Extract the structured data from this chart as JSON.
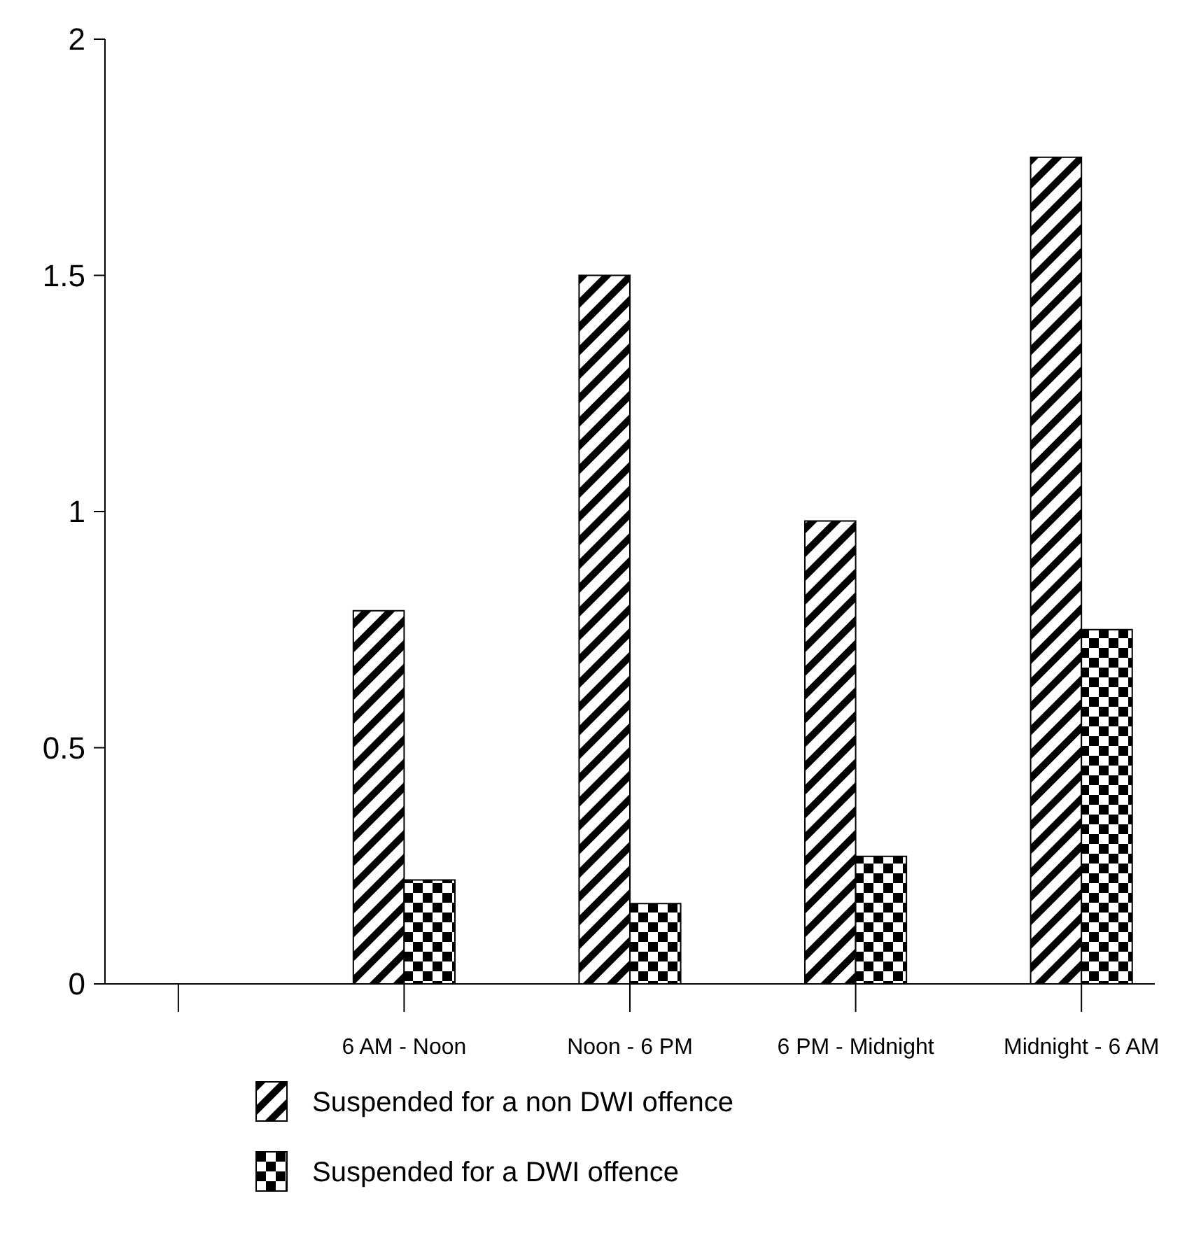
{
  "chart_data": {
    "type": "bar",
    "categories": [
      null,
      "6 AM - Noon",
      "Noon - 6 PM",
      "6 PM - Midnight",
      "Midnight - 6 AM"
    ],
    "series": [
      {
        "name": "Suspended for a non DWI offence",
        "color": "#000000",
        "values": [
          null,
          0.79,
          1.5,
          0.98,
          1.75
        ]
      },
      {
        "name": "Suspended for a DWI offence",
        "color": "#000000",
        "values": [
          null,
          0.22,
          0.17,
          0.27,
          0.75
        ]
      }
    ],
    "ylim": [
      0,
      2
    ],
    "yticks": [
      0,
      0.5,
      1,
      1.5,
      2
    ],
    "grid": false,
    "legend": "bottom"
  }
}
